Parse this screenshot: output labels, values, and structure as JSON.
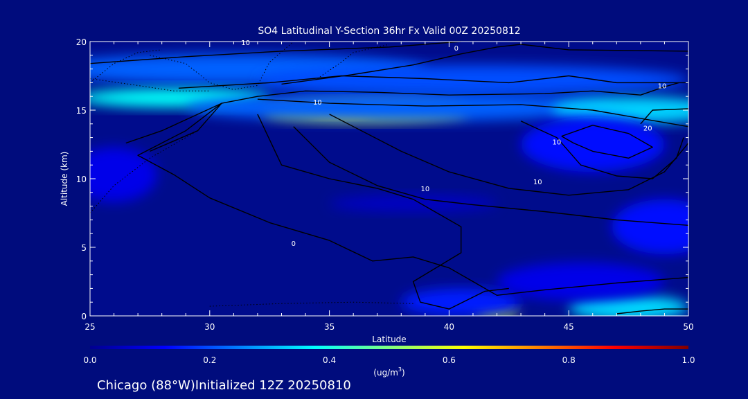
{
  "chart_data": {
    "type": "heatmap",
    "title": "SO4 Latitudinal Y-Section 36hr  Fx Valid 00Z 20250812",
    "xlabel": "Latitude",
    "ylabel": "Altitude (km)",
    "xlim": [
      25,
      50
    ],
    "ylim": [
      0,
      20
    ],
    "x_ticks": [
      25,
      30,
      35,
      40,
      45,
      50
    ],
    "y_ticks": [
      0,
      5,
      10,
      15,
      20
    ],
    "colorbar": {
      "range": [
        0.0,
        1.0
      ],
      "ticks": [
        0.0,
        0.2,
        0.4,
        0.6,
        0.8,
        1.0
      ],
      "tick_labels": [
        "0.0",
        "0.2",
        "0.4",
        "0.6",
        "0.8",
        "1.0"
      ],
      "unit_label": "(ug/m",
      "unit_superscript": "3",
      "unit_close": ")",
      "colors": [
        "#00008f",
        "#0000ff",
        "#0080ff",
        "#00ffff",
        "#80ff80",
        "#ffff00",
        "#ff8000",
        "#ff0000",
        "#800000"
      ]
    },
    "blobs": [
      {
        "lat": 31.0,
        "alt": 18.0,
        "rlat": 8.0,
        "ralt": 1.1,
        "value": 0.22
      },
      {
        "lat": 41.0,
        "alt": 17.2,
        "rlat": 9.0,
        "ralt": 1.1,
        "value": 0.2
      },
      {
        "lat": 28.5,
        "alt": 15.9,
        "rlat": 4.0,
        "ralt": 0.7,
        "value": 0.38
      },
      {
        "lat": 36.5,
        "alt": 14.9,
        "rlat": 4.3,
        "ralt": 0.7,
        "value": 0.62
      },
      {
        "lat": 35.5,
        "alt": 14.8,
        "rlat": 1.3,
        "ralt": 0.35,
        "value": 0.66
      },
      {
        "lat": 38.0,
        "alt": 15.2,
        "rlat": 9.0,
        "ralt": 1.0,
        "value": 0.22
      },
      {
        "lat": 47.8,
        "alt": 15.0,
        "rlat": 3.5,
        "ralt": 1.0,
        "value": 0.33
      },
      {
        "lat": 46.0,
        "alt": 12.5,
        "rlat": 3.0,
        "ralt": 2.0,
        "value": 0.14
      },
      {
        "lat": 26.0,
        "alt": 10.3,
        "rlat": 1.8,
        "ralt": 2.0,
        "value": 0.1
      },
      {
        "lat": 38.5,
        "alt": 8.2,
        "rlat": 3.5,
        "ralt": 0.6,
        "value": 0.06
      },
      {
        "lat": 49.0,
        "alt": 6.5,
        "rlat": 2.2,
        "ralt": 2.0,
        "value": 0.14
      },
      {
        "lat": 42.0,
        "alt": 0.25,
        "rlat": 0.9,
        "ralt": 0.35,
        "value": 0.58
      },
      {
        "lat": 47.5,
        "alt": 0.6,
        "rlat": 2.5,
        "ralt": 0.9,
        "value": 0.34
      },
      {
        "lat": 40.5,
        "alt": 1.0,
        "rlat": 2.5,
        "ralt": 1.0,
        "value": 0.15
      },
      {
        "lat": 45.5,
        "alt": 2.5,
        "rlat": 3.5,
        "ralt": 1.4,
        "value": 0.1
      }
    ],
    "contours": [
      {
        "style": "solid",
        "points": [
          [
            25.0,
            18.4
          ],
          [
            29.0,
            18.9
          ],
          [
            33.0,
            19.3
          ],
          [
            37.5,
            19.6
          ],
          [
            40.5,
            20.0
          ]
        ]
      },
      {
        "style": "solid",
        "points": [
          [
            33.0,
            16.9
          ],
          [
            36.0,
            17.6
          ],
          [
            38.5,
            18.3
          ],
          [
            40.5,
            19.1
          ],
          [
            42.0,
            19.6
          ],
          [
            43.0,
            19.8
          ],
          [
            45.0,
            19.4
          ],
          [
            50.0,
            19.3
          ]
        ]
      },
      {
        "style": "solid",
        "points": [
          [
            28.7,
            16.6
          ],
          [
            32.5,
            17.0
          ],
          [
            35.5,
            17.5
          ],
          [
            39.0,
            17.3
          ],
          [
            42.5,
            17.0
          ],
          [
            45.0,
            17.5
          ],
          [
            47.0,
            17.0
          ],
          [
            50.0,
            17.0
          ]
        ]
      },
      {
        "style": "solid",
        "points": [
          [
            26.5,
            12.6
          ],
          [
            28.0,
            13.5
          ],
          [
            30.5,
            15.5
          ],
          [
            32.0,
            16.0
          ],
          [
            34.0,
            16.4
          ],
          [
            37.0,
            16.3
          ],
          [
            40.0,
            16.1
          ],
          [
            44.0,
            16.2
          ],
          [
            46.0,
            16.4
          ],
          [
            48.0,
            16.1
          ],
          [
            49.0,
            16.7
          ],
          [
            49.6,
            17.0
          ]
        ]
      },
      {
        "style": "solid",
        "points": [
          [
            32.0,
            15.8
          ],
          [
            35.0,
            15.5
          ],
          [
            39.0,
            15.3
          ],
          [
            43.0,
            15.4
          ],
          [
            46.0,
            15.0
          ],
          [
            48.0,
            14.4
          ],
          [
            50.0,
            13.8
          ]
        ]
      },
      {
        "style": "solid",
        "points": [
          [
            48.0,
            14.0
          ],
          [
            48.5,
            15.0
          ],
          [
            50.0,
            15.1
          ]
        ]
      },
      {
        "style": "solid",
        "points": [
          [
            27.5,
            12.0
          ],
          [
            29.5,
            13.5
          ],
          [
            30.5,
            15.5
          ],
          [
            29.0,
            13.5
          ],
          [
            27.0,
            11.7
          ],
          [
            28.5,
            10.3
          ],
          [
            30.0,
            8.6
          ],
          [
            32.5,
            6.8
          ],
          [
            35.0,
            5.5
          ],
          [
            36.8,
            4.0
          ],
          [
            38.5,
            4.3
          ],
          [
            40.0,
            3.5
          ],
          [
            41.0,
            2.5
          ],
          [
            42.0,
            1.5
          ],
          [
            44.0,
            1.9
          ],
          [
            47.0,
            2.4
          ],
          [
            50.0,
            2.8
          ]
        ]
      },
      {
        "style": "solid",
        "points": [
          [
            33.5,
            13.8
          ],
          [
            35.0,
            11.2
          ],
          [
            37.0,
            9.5
          ],
          [
            39.0,
            8.5
          ],
          [
            41.0,
            8.1
          ],
          [
            44.0,
            7.6
          ],
          [
            47.0,
            7.0
          ],
          [
            50.0,
            6.6
          ]
        ]
      },
      {
        "style": "solid",
        "points": [
          [
            35.0,
            14.7
          ],
          [
            38.0,
            12.0
          ],
          [
            40.0,
            10.5
          ],
          [
            42.5,
            9.3
          ],
          [
            45.0,
            8.8
          ],
          [
            47.5,
            9.2
          ],
          [
            49.0,
            10.5
          ],
          [
            50.0,
            12.6
          ]
        ]
      },
      {
        "style": "solid",
        "points": [
          [
            32.0,
            14.7
          ],
          [
            33.0,
            11.0
          ],
          [
            35.0,
            10.0
          ],
          [
            37.0,
            9.3
          ],
          [
            38.5,
            8.5
          ],
          [
            39.5,
            7.5
          ],
          [
            40.5,
            6.5
          ],
          [
            40.5,
            4.6
          ],
          [
            38.5,
            2.5
          ],
          [
            38.8,
            1.0
          ],
          [
            40.0,
            0.5
          ],
          [
            41.5,
            1.8
          ],
          [
            42.5,
            2.0
          ]
        ]
      },
      {
        "style": "solid",
        "points": [
          [
            43.0,
            14.2
          ],
          [
            44.5,
            13.0
          ],
          [
            45.5,
            11.0
          ],
          [
            47.0,
            10.2
          ],
          [
            48.5,
            10.0
          ],
          [
            49.5,
            11.5
          ],
          [
            49.8,
            13.0
          ]
        ]
      },
      {
        "style": "solid",
        "points": [
          [
            44.7,
            13.1
          ],
          [
            46.0,
            13.9
          ],
          [
            47.5,
            13.3
          ],
          [
            48.5,
            12.3
          ],
          [
            47.5,
            11.5
          ],
          [
            46.0,
            12.0
          ],
          [
            45.2,
            12.6
          ],
          [
            44.7,
            13.1
          ]
        ]
      },
      {
        "style": "solid",
        "points": [
          [
            47.0,
            0.15
          ],
          [
            48.0,
            0.35
          ],
          [
            49.0,
            0.5
          ],
          [
            50.0,
            0.5
          ]
        ]
      },
      {
        "style": "dotted",
        "points": [
          [
            27.5,
            19.0
          ],
          [
            29.0,
            18.4
          ],
          [
            30.0,
            17.0
          ],
          [
            31.0,
            16.5
          ],
          [
            32.0,
            16.8
          ],
          [
            32.5,
            18.5
          ],
          [
            33.5,
            20.0
          ]
        ]
      },
      {
        "style": "dotted",
        "points": [
          [
            25.0,
            17.3
          ],
          [
            27.0,
            16.8
          ],
          [
            28.5,
            16.4
          ],
          [
            30.0,
            16.4
          ]
        ]
      },
      {
        "style": "dotted",
        "points": [
          [
            25.0,
            17.0
          ],
          [
            26.0,
            18.4
          ],
          [
            27.0,
            19.2
          ],
          [
            28.0,
            19.4
          ]
        ]
      },
      {
        "style": "dotted",
        "points": [
          [
            34.5,
            17.3
          ],
          [
            35.5,
            18.5
          ],
          [
            36.0,
            19.2
          ],
          [
            37.5,
            19.8
          ]
        ]
      },
      {
        "style": "dotted",
        "points": [
          [
            25.0,
            7.5
          ],
          [
            26.0,
            9.5
          ],
          [
            27.5,
            11.5
          ],
          [
            29.5,
            13.5
          ]
        ]
      },
      {
        "style": "dotted",
        "points": [
          [
            30.0,
            0.7
          ],
          [
            33.0,
            0.9
          ],
          [
            36.0,
            1.0
          ],
          [
            38.5,
            0.9
          ]
        ]
      }
    ],
    "contour_labels": [
      {
        "text": "10",
        "lat": 31.5,
        "alt": 19.95
      },
      {
        "text": "0",
        "lat": 40.3,
        "alt": 19.55
      },
      {
        "text": "10",
        "lat": 34.5,
        "alt": 15.6
      },
      {
        "text": "10",
        "lat": 48.9,
        "alt": 16.8
      },
      {
        "text": "20",
        "lat": 48.3,
        "alt": 13.7
      },
      {
        "text": "10",
        "lat": 44.5,
        "alt": 12.7
      },
      {
        "text": "10",
        "lat": 43.7,
        "alt": 9.8
      },
      {
        "text": "10",
        "lat": 39.0,
        "alt": 9.3
      },
      {
        "text": "0",
        "lat": 33.5,
        "alt": 5.3
      }
    ]
  },
  "footer": {
    "caption": "Chicago (88°W)Initialized 12Z 20250810"
  }
}
